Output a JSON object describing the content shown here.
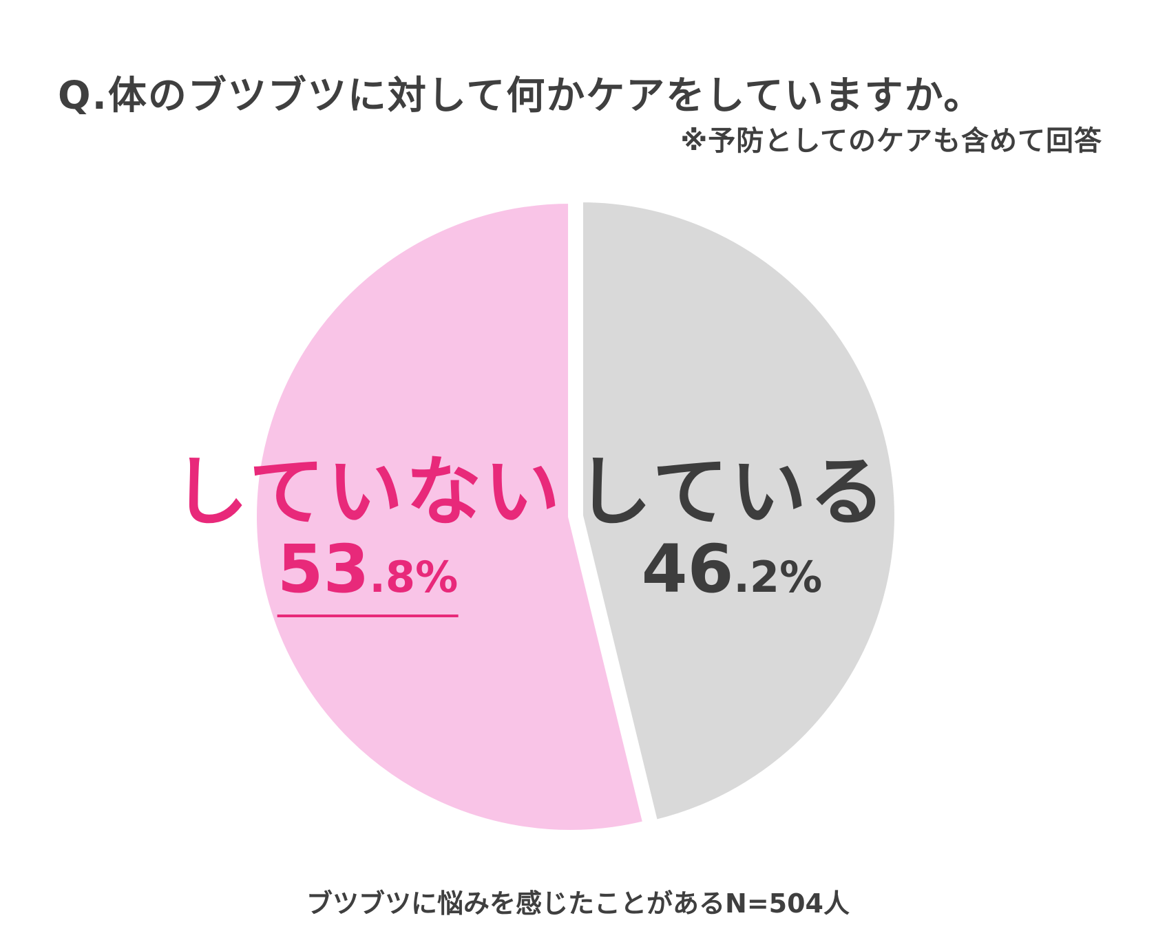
{
  "colors": {
    "title": "#3f3f3f",
    "slice_not": "#f9c4e7",
    "slice_yes": "#d9d9d9",
    "label_not": "#e8297a",
    "label_yes": "#3d3d3d"
  },
  "chart_data": {
    "type": "pie",
    "title": "Q.体のブツブツに対して何かケアをしていますか。",
    "subtitle": "※予防としてのケアも含めて回答",
    "note": "ブツブツに悩みを感じたことがあるN=504人",
    "slices": [
      {
        "label": "している",
        "value": 46.2,
        "value_int": "46",
        "value_frac": ".2%"
      },
      {
        "label": "していない",
        "value": 53.8,
        "value_int": "53",
        "value_frac": ".8%"
      }
    ]
  }
}
